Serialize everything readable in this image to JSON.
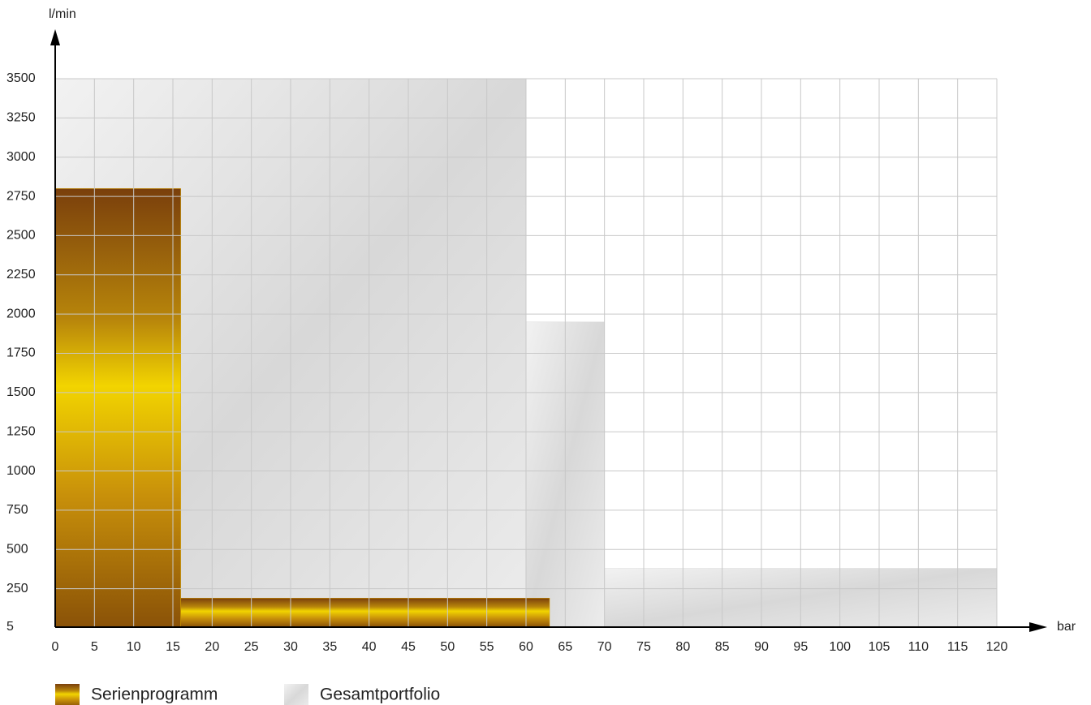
{
  "chart_data": {
    "type": "step-area",
    "x_label": "bar",
    "y_label": "l/min",
    "xlim": [
      0,
      120
    ],
    "ylim": [
      5,
      3500
    ],
    "xticks": [
      0,
      5,
      10,
      15,
      20,
      25,
      30,
      35,
      40,
      45,
      50,
      55,
      60,
      65,
      70,
      75,
      80,
      85,
      90,
      95,
      100,
      105,
      110,
      115,
      120
    ],
    "yticks": [
      5,
      250,
      500,
      750,
      1000,
      1250,
      1500,
      1750,
      2000,
      2250,
      2500,
      2750,
      3000,
      3250,
      3500
    ],
    "grid": true,
    "series": [
      {
        "name": "Gesamtportfolio",
        "color": "#dcdcdc",
        "x": [
          60,
          70,
          120
        ],
        "values": [
          3500,
          1950,
          380
        ]
      },
      {
        "name": "Serienprogramm",
        "color": "#d9a400",
        "x": [
          16,
          63
        ],
        "values": [
          2800,
          190
        ]
      }
    ]
  }
}
